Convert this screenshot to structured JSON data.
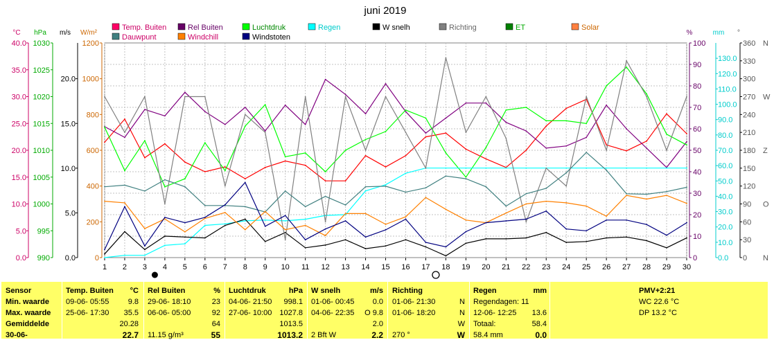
{
  "chart_data": {
    "type": "line",
    "title": "juni 2019",
    "x": [
      1,
      2,
      3,
      4,
      5,
      6,
      7,
      8,
      9,
      10,
      11,
      12,
      13,
      14,
      15,
      16,
      17,
      18,
      19,
      20,
      21,
      22,
      23,
      24,
      25,
      26,
      27,
      28,
      29,
      30
    ],
    "xlim": [
      1,
      30
    ],
    "axes": {
      "temp": {
        "unit": "°C",
        "range": [
          0,
          40
        ],
        "ticks": [
          "0.0",
          "5.0",
          "10.0",
          "15.0",
          "20.0",
          "25.0",
          "30.0",
          "35.0",
          "40.0"
        ],
        "color": "#cc0066"
      },
      "pressure": {
        "unit": "hPa",
        "range": [
          990,
          1030
        ],
        "ticks": [
          "990",
          "995",
          "1000",
          "1005",
          "1010",
          "1015",
          "1020",
          "1025",
          "1030"
        ],
        "color": "#00aa00"
      },
      "wind": {
        "unit": "m/s",
        "range": [
          0,
          24
        ],
        "ticks": [
          "0.0",
          "5.0",
          "10.0",
          "15.0",
          "20.0"
        ],
        "color": "#000000"
      },
      "solar": {
        "unit": "W/m²",
        "range": [
          0,
          1200
        ],
        "ticks": [
          "0",
          "200",
          "400",
          "600",
          "800",
          "1000",
          "1200"
        ],
        "color": "#cc6600"
      },
      "humidity": {
        "unit": "%",
        "range": [
          0,
          100
        ],
        "ticks": [
          "0",
          "10",
          "20",
          "30",
          "40",
          "50",
          "60",
          "70",
          "80",
          "90",
          "100"
        ],
        "color": "#660066"
      },
      "rain": {
        "unit": "mm",
        "range": [
          0,
          140
        ],
        "ticks": [
          "0.0",
          "10.0",
          "20.0",
          "30.0",
          "40.0",
          "50.0",
          "60.0",
          "70.0",
          "80.0",
          "90.0",
          "100.0",
          "110.0",
          "120.0",
          "130.0"
        ],
        "color": "#00cccc"
      },
      "direction": {
        "unit": "°",
        "range": [
          0,
          360
        ],
        "ticks": [
          {
            "deg": 0,
            "label": "0",
            "compass": "N"
          },
          {
            "deg": 30,
            "label": "30",
            "compass": ""
          },
          {
            "deg": 60,
            "label": "60",
            "compass": ""
          },
          {
            "deg": 90,
            "label": "90",
            "compass": "O"
          },
          {
            "deg": 120,
            "label": "120",
            "compass": ""
          },
          {
            "deg": 150,
            "label": "150",
            "compass": ""
          },
          {
            "deg": 180,
            "label": "180",
            "compass": "Z"
          },
          {
            "deg": 210,
            "label": "210",
            "compass": ""
          },
          {
            "deg": 240,
            "label": "240",
            "compass": ""
          },
          {
            "deg": 270,
            "label": "270",
            "compass": "W"
          },
          {
            "deg": 300,
            "label": "300",
            "compass": ""
          },
          {
            "deg": 330,
            "label": "330",
            "compass": ""
          },
          {
            "deg": 360,
            "label": "360",
            "compass": "N"
          }
        ]
      }
    },
    "grid": true,
    "legend": [
      {
        "name": "Temp. Buiten",
        "color": "#ff0066",
        "textColor": "#cc0066"
      },
      {
        "name": "Rel Buiten",
        "color": "#660066",
        "textColor": "#660066"
      },
      {
        "name": "Luchtdruk",
        "color": "#00ff00",
        "textColor": "#008800"
      },
      {
        "name": "Regen",
        "color": "#00ffff",
        "textColor": "#00cccc"
      },
      {
        "name": "W snelh",
        "color": "#000000",
        "textColor": "#000000"
      },
      {
        "name": "Richting",
        "color": "#808080",
        "textColor": "#666666"
      },
      {
        "name": "ET",
        "color": "#008000",
        "textColor": "#00aa00"
      },
      {
        "name": "Solar",
        "color": "#ff8040",
        "textColor": "#cc6600"
      },
      {
        "name": "Dauwpunt",
        "color": "#408080",
        "textColor": "#cc0066"
      },
      {
        "name": "Windchill",
        "color": "#ff8000",
        "textColor": "#cc0066"
      },
      {
        "name": "Windstoten",
        "color": "#000080",
        "textColor": "#000000"
      }
    ],
    "series": [
      {
        "name": "Temp. Buiten",
        "axis": "temp",
        "color": "#ff0000",
        "values": [
          21.5,
          25.8,
          18.6,
          21.2,
          17.8,
          16.0,
          16.9,
          14.7,
          16.8,
          18.0,
          17.2,
          14.3,
          14.3,
          19.0,
          16.9,
          19.0,
          22.5,
          23.2,
          20.2,
          18.4,
          16.8,
          20.0,
          24.5,
          27.8,
          29.5,
          21.0,
          19.9,
          21.7,
          26.8,
          23.1
        ]
      },
      {
        "name": "Rel Buiten",
        "axis": "humidity",
        "color": "#800080",
        "values": [
          61,
          56,
          69,
          66,
          77,
          68,
          62,
          70,
          59,
          71,
          62,
          83,
          76,
          67,
          81,
          68,
          58,
          65,
          72,
          72,
          63,
          59,
          51,
          52,
          56,
          71,
          60,
          51,
          42,
          54
        ]
      },
      {
        "name": "Luchtdruk",
        "axis": "pressure",
        "color": "#00ff00",
        "values": [
          1014.3,
          1006.2,
          1011.8,
          1003.2,
          1004.7,
          1011.4,
          1006.2,
          1014.5,
          1018.5,
          1008.8,
          1009.5,
          1006.0,
          1010.0,
          1012.0,
          1013.5,
          1017.5,
          1016.0,
          1009.5,
          1005.0,
          1010.5,
          1017.5,
          1018.0,
          1015.5,
          1015.5,
          1015.0,
          1022.0,
          1025.5,
          1020.5,
          1013.0,
          1011.0
        ]
      },
      {
        "name": "Regen",
        "axis": "rain",
        "color": "#00ffff",
        "values": [
          0.0,
          1.5,
          1.5,
          8.0,
          9.0,
          21.0,
          22.0,
          24.0,
          24.5,
          24.0,
          25.0,
          27.5,
          28.0,
          43.5,
          47.5,
          55.0,
          58.4,
          58.4,
          58.4,
          58.4,
          58.4,
          58.4,
          58.4,
          58.4,
          58.4,
          58.4,
          58.4,
          58.4,
          58.4,
          58.4
        ]
      },
      {
        "name": "W snelh",
        "axis": "wind",
        "color": "#000000",
        "values": [
          0.4,
          2.9,
          0.9,
          2.4,
          2.3,
          2.2,
          3.6,
          4.3,
          1.8,
          2.8,
          1.1,
          1.4,
          2.0,
          1.0,
          1.3,
          2.0,
          1.2,
          0.2,
          1.6,
          2.1,
          2.1,
          2.2,
          2.8,
          1.7,
          1.8,
          2.2,
          2.3,
          1.9,
          1.1,
          2.2
        ]
      },
      {
        "name": "Richting",
        "axis": "direction",
        "color": "#808080",
        "values": [
          270,
          210,
          270,
          90,
          270,
          270,
          120,
          240,
          210,
          30,
          270,
          60,
          270,
          180,
          270,
          210,
          150,
          335,
          210,
          270,
          200,
          60,
          150,
          120,
          270,
          180,
          330,
          270,
          180,
          270
        ]
      },
      {
        "name": "Dauwpunt",
        "axis": "temp",
        "color": "#408080",
        "values": [
          13.2,
          13.5,
          12.4,
          14.5,
          13.2,
          9.7,
          9.7,
          9.5,
          8.5,
          12.4,
          9.5,
          11.4,
          9.8,
          13.2,
          13.3,
          12.2,
          13.0,
          15.2,
          14.7,
          13.2,
          9.6,
          11.9,
          12.9,
          15.8,
          19.6,
          16.3,
          11.9,
          11.8,
          12.3,
          13.1
        ]
      },
      {
        "name": "Windchill",
        "axis": "temp",
        "color": "#ff8000",
        "values": [
          10.5,
          10.2,
          5.4,
          7.2,
          4.8,
          7.3,
          8.4,
          5.2,
          8.6,
          5.2,
          6.0,
          4.1,
          8.2,
          8.2,
          6.2,
          7.6,
          11.2,
          9.0,
          7.0,
          6.5,
          8.3,
          10.0,
          10.5,
          10.2,
          9.6,
          7.7,
          11.6,
          10.9,
          11.6,
          10.1
        ]
      },
      {
        "name": "Windstoten",
        "axis": "wind",
        "color": "#000080",
        "values": [
          0.9,
          5.7,
          1.3,
          4.5,
          3.9,
          4.5,
          5.9,
          8.4,
          3.5,
          4.7,
          2.0,
          3.2,
          4.1,
          2.3,
          3.1,
          4.3,
          1.7,
          1.2,
          2.9,
          3.9,
          4.1,
          4.3,
          5.2,
          3.2,
          3.0,
          4.2,
          4.2,
          3.7,
          2.5,
          3.9
        ]
      }
    ],
    "xticks": [
      "1",
      "2",
      "3",
      "4",
      "5",
      "6",
      "7",
      "8",
      "9",
      "10",
      "11",
      "12",
      "13",
      "14",
      "15",
      "16",
      "17",
      "18",
      "19",
      "20",
      "21",
      "22",
      "23",
      "24",
      "25",
      "26",
      "27",
      "28",
      "29",
      "30"
    ],
    "moon": {
      "new_day": 3.5,
      "full_day": 17.5
    }
  },
  "table": {
    "col1": {
      "header": "Sensor",
      "rows": [
        "Min. waarde",
        "Max. waarde",
        "Gemiddelde",
        "30-06-"
      ]
    },
    "col2": {
      "header": "Temp. Buiten",
      "unit": "°C",
      "rows": [
        [
          "09-06- 05:55",
          "9.8"
        ],
        [
          "25-06- 17:30",
          "35.5"
        ],
        [
          "",
          "20.28"
        ],
        [
          "",
          "22.7"
        ]
      ]
    },
    "col3": {
      "header": "Rel Buiten",
      "unit": "%",
      "rows": [
        [
          "29-06- 18:10",
          "23"
        ],
        [
          "06-06- 05:00",
          "92"
        ],
        [
          "",
          "64"
        ],
        [
          "11.15 g/m³",
          "55"
        ]
      ]
    },
    "col4": {
      "header": "Luchtdruk",
      "unit": "hPa",
      "rows": [
        [
          "04-06- 21:50",
          "998.1"
        ],
        [
          "27-06- 10:00",
          "1027.8"
        ],
        [
          "",
          "1013.5"
        ],
        [
          "",
          "1013.2"
        ]
      ]
    },
    "col5": {
      "header": "W snelh",
      "unit": "m/s",
      "rows": [
        [
          "01-06- 00:45",
          "0.0"
        ],
        [
          "04-06- 22:35",
          "O 9.8"
        ],
        [
          "",
          "2.0"
        ],
        [
          "2 Bft W",
          "2.2"
        ]
      ]
    },
    "col6": {
      "header": "Richting",
      "rows": [
        [
          "01-06- 21:30",
          "N"
        ],
        [
          "01-06- 18:20",
          "N"
        ],
        [
          "",
          "W"
        ],
        [
          "270 °",
          "W"
        ]
      ]
    },
    "col7": {
      "header": "Regen",
      "unit": "mm",
      "rows": [
        [
          "Regendagen: 11",
          ""
        ],
        [
          "12-06- 12:25",
          "13.6"
        ],
        [
          "Totaal:",
          "58.4"
        ],
        [
          "58.4 mm",
          "0.0"
        ]
      ]
    },
    "col8": {
      "header": "PMV+2:21",
      "rows": [
        "WC 22.6 °C",
        "DP 13.2 °C"
      ]
    }
  }
}
